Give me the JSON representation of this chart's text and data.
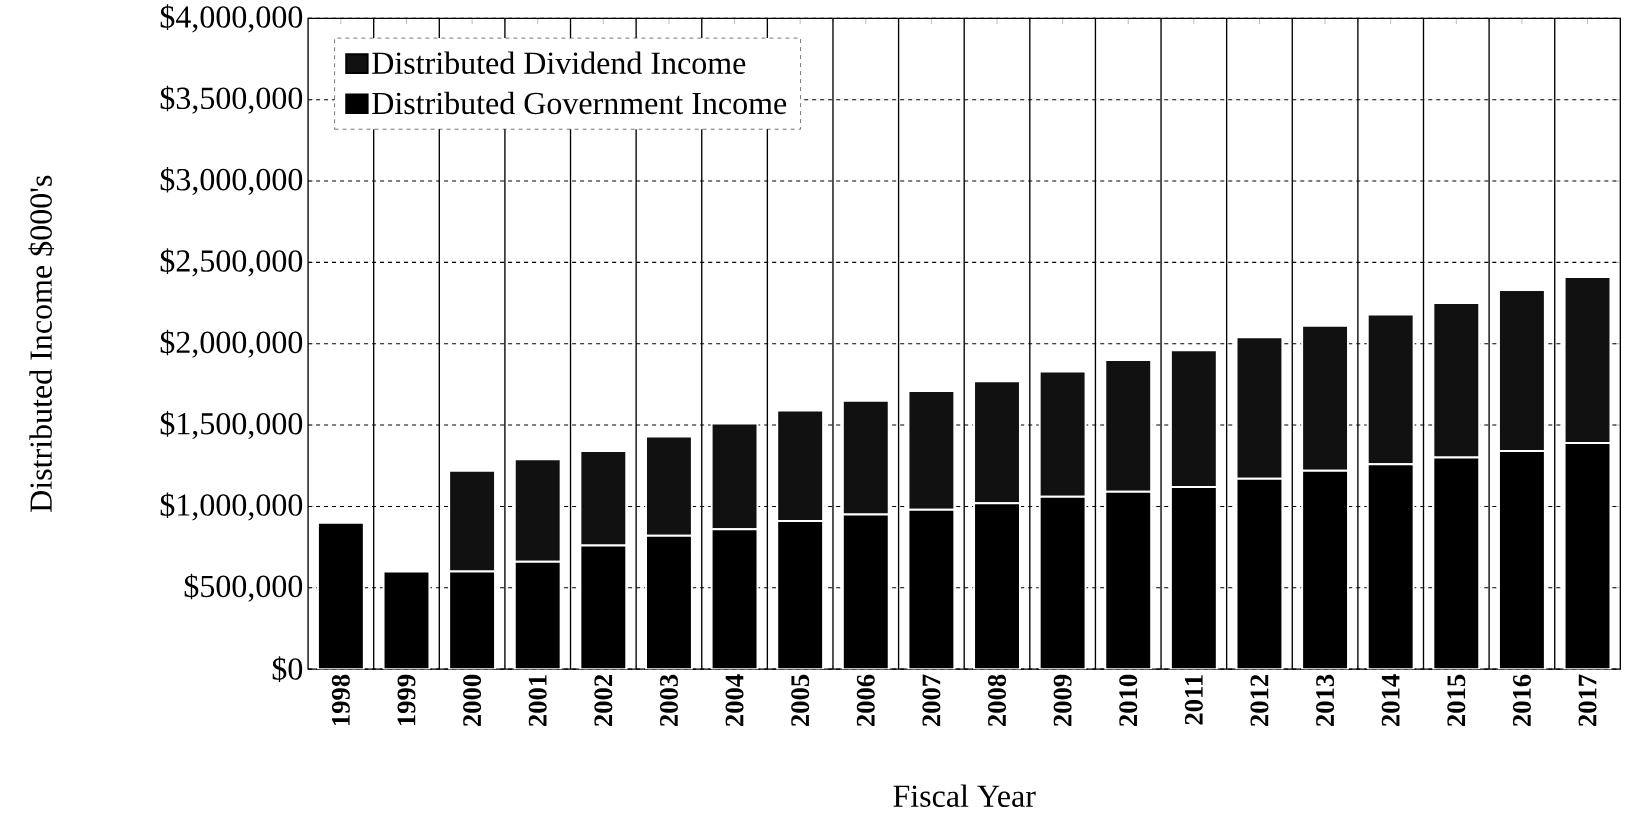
{
  "chart_data": {
    "type": "bar",
    "stacked": true,
    "xlabel": "Fiscal Year",
    "ylabel": "Distributed Income $000's",
    "categories": [
      "1998",
      "1999",
      "2000",
      "2001",
      "2002",
      "2003",
      "2004",
      "2005",
      "2006",
      "2007",
      "2008",
      "2009",
      "2010",
      "2011",
      "2012",
      "2013",
      "2014",
      "2015",
      "2016",
      "2017"
    ],
    "series": [
      {
        "name": "Distributed Government Income",
        "color": "#000000",
        "values": [
          900000,
          600000,
          600000,
          660000,
          760000,
          820000,
          860000,
          910000,
          950000,
          980000,
          1020000,
          1060000,
          1090000,
          1120000,
          1170000,
          1220000,
          1260000,
          1300000,
          1340000,
          1390000
        ]
      },
      {
        "name": "Distributed Dividend Income",
        "color": "#111111",
        "values": [
          0,
          0,
          620000,
          630000,
          580000,
          610000,
          650000,
          680000,
          700000,
          730000,
          750000,
          770000,
          810000,
          840000,
          870000,
          890000,
          920000,
          950000,
          990000,
          1020000
        ]
      }
    ],
    "ylim": [
      0,
      4000000
    ],
    "yticks": [
      {
        "value": 0,
        "label": "$0"
      },
      {
        "value": 500000,
        "label": "$500,000"
      },
      {
        "value": 1000000,
        "label": "$1,000,000"
      },
      {
        "value": 1500000,
        "label": "$1,500,000"
      },
      {
        "value": 2000000,
        "label": "$2,000,000"
      },
      {
        "value": 2500000,
        "label": "$2,500,000"
      },
      {
        "value": 3000000,
        "label": "$3,000,000"
      },
      {
        "value": 3500000,
        "label": "$3,500,000"
      },
      {
        "value": 4000000,
        "label": "$4,000,000"
      }
    ],
    "grid": true,
    "legend": "top left"
  }
}
